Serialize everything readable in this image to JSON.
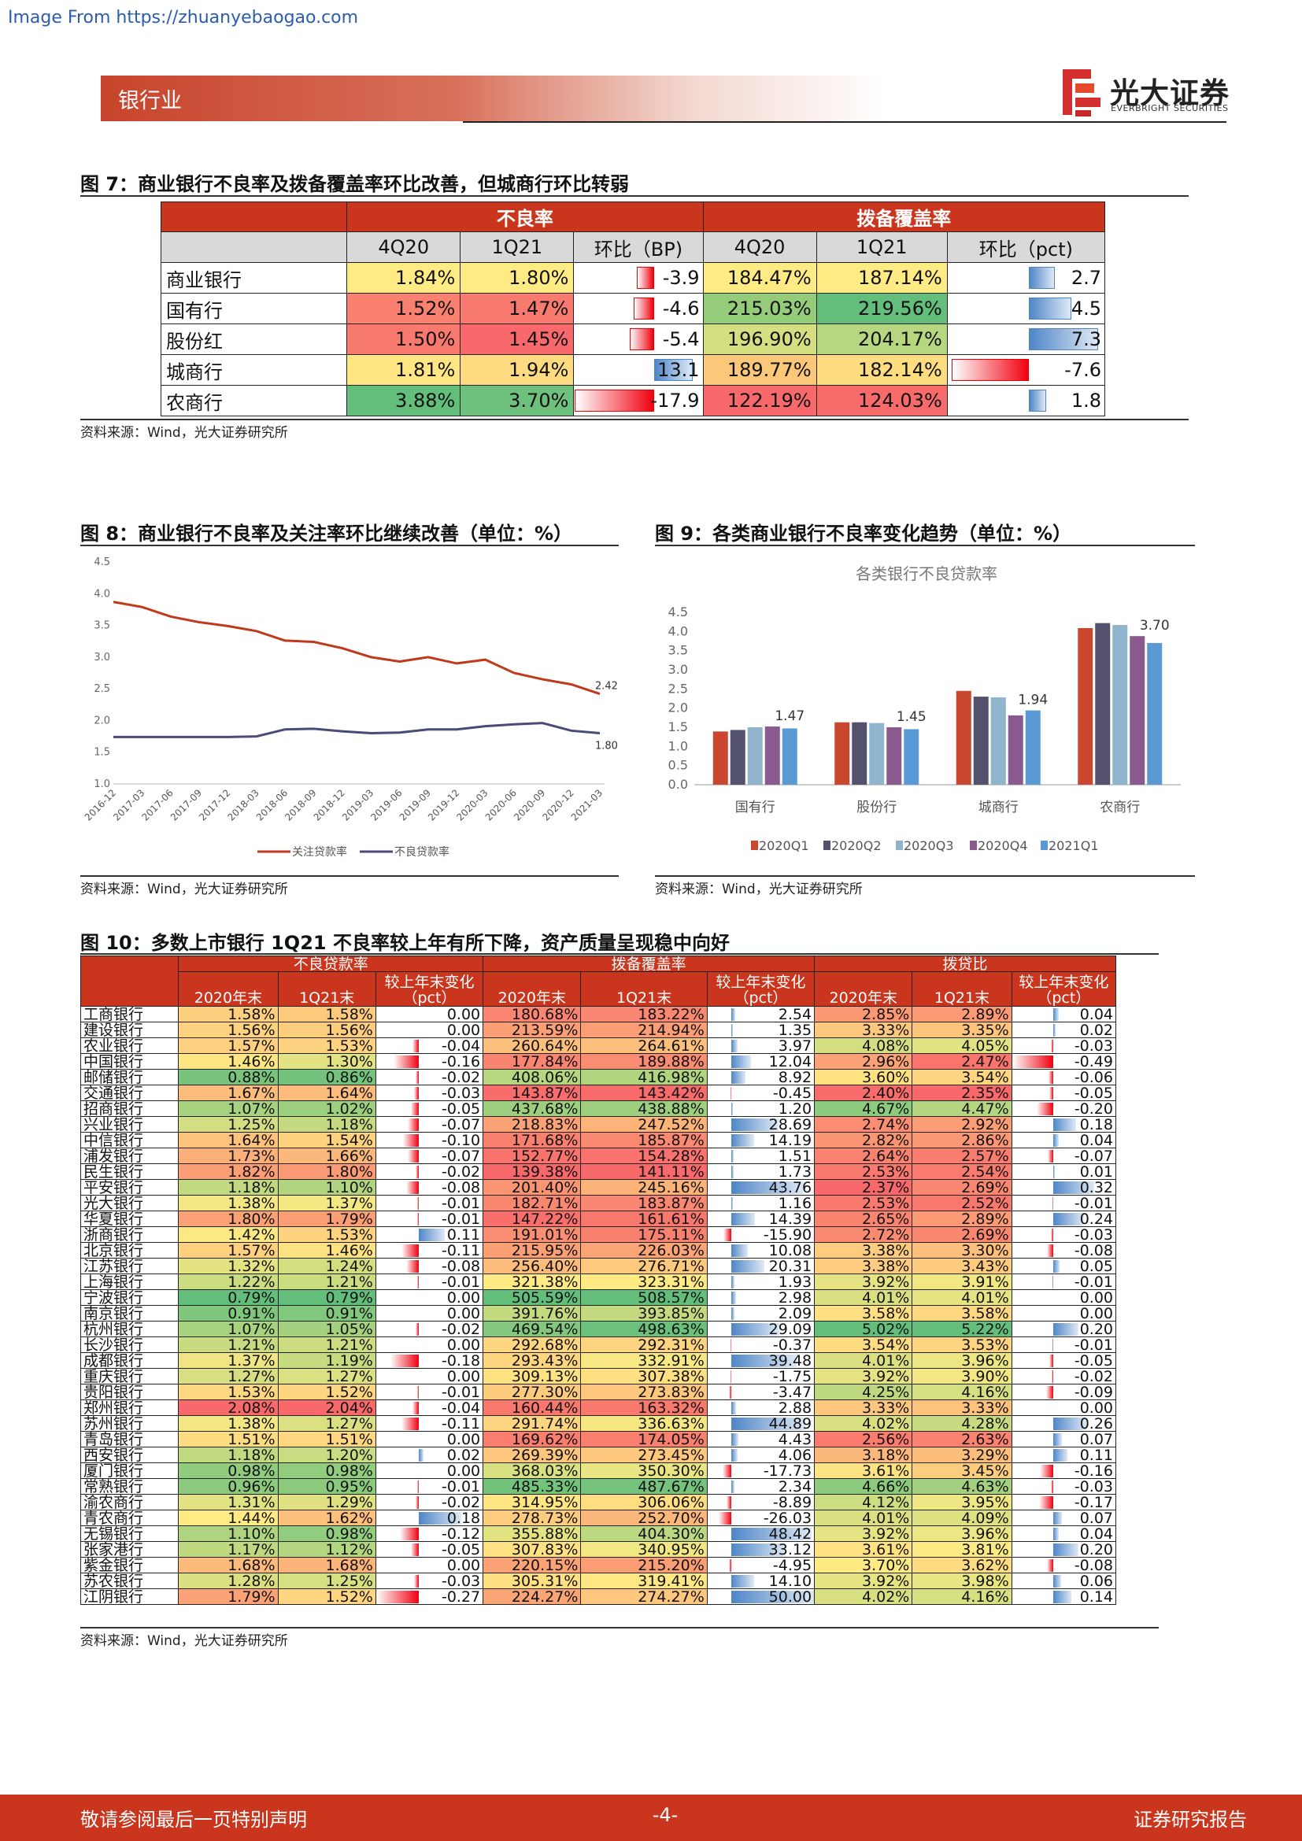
{
  "source_link": "Image From https://zhuanyebaogao.com",
  "header": {
    "section": "银行业",
    "brand_cn": "光大证券",
    "brand_en": "EVERBRIGHT SECURITIES"
  },
  "fig7": {
    "title": "图 7：商业银行不良率及拨备覆盖率环比改善，但城商行环比转弱",
    "group_npl": "不良率",
    "group_cov": "拨备覆盖率",
    "cols": [
      "4Q20",
      "1Q21",
      "环比（BP)",
      "4Q20",
      "1Q21",
      "环比（pct)"
    ],
    "rows": [
      {
        "name": "商业银行",
        "npl_4q": "1.84%",
        "npl_1q": "1.80%",
        "npl_chg": -3.9,
        "npl_chg_t": "-3.9",
        "cov_4q": "184.47%",
        "cov_1q": "187.14%",
        "cov_chg": 2.7,
        "cov_chg_t": "2.7",
        "c1": "#ffeb84",
        "c2": "#ffeb84",
        "c3": "#ffeb84",
        "c4": "#ffeb84"
      },
      {
        "name": "国有行",
        "npl_4q": "1.52%",
        "npl_1q": "1.47%",
        "npl_chg": -4.6,
        "npl_chg_t": "-4.6",
        "cov_4q": "215.03%",
        "cov_1q": "219.56%",
        "cov_chg": 4.5,
        "cov_chg_t": "4.5",
        "c1": "#fa8070",
        "c2": "#f87a6e",
        "c3": "#94cc7a",
        "c4": "#63be7b"
      },
      {
        "name": "股份红",
        "npl_4q": "1.50%",
        "npl_1q": "1.45%",
        "npl_chg": -5.4,
        "npl_chg_t": "-5.4",
        "cov_4q": "196.90%",
        "cov_1q": "204.17%",
        "cov_chg": 7.3,
        "cov_chg_t": "7.3",
        "c1": "#f8796d",
        "c2": "#f8696b",
        "c3": "#d4df82",
        "c4": "#b7d680"
      },
      {
        "name": "城商行",
        "npl_4q": "1.81%",
        "npl_1q": "1.94%",
        "npl_chg": 13.1,
        "npl_chg_t": "13.1",
        "cov_4q": "189.77%",
        "cov_1q": "182.14%",
        "cov_chg": -7.6,
        "cov_chg_t": "-7.6",
        "c1": "#ffe683",
        "c2": "#fedb81",
        "c3": "#fbc879",
        "c4": "#fedd81"
      },
      {
        "name": "农商行",
        "npl_4q": "3.88%",
        "npl_1q": "3.70%",
        "npl_chg": -17.9,
        "npl_chg_t": "-17.9",
        "cov_4q": "122.19%",
        "cov_1q": "124.03%",
        "cov_chg": 1.8,
        "cov_chg_t": "1.8",
        "c1": "#63be7b",
        "c2": "#6ec17c",
        "c3": "#f8696b",
        "c4": "#f86b6b"
      }
    ],
    "source": "资料来源：Wind，光大证券研究所"
  },
  "fig8": {
    "title": "图 8：商业银行不良率及关注率环比继续改善（单位：%）",
    "source": "资料来源：Wind，光大证券研究所",
    "chart_data": {
      "type": "line",
      "x": [
        "2016-12",
        "2017-03",
        "2017-06",
        "2017-09",
        "2017-12",
        "2018-03",
        "2018-06",
        "2018-09",
        "2018-12",
        "2019-03",
        "2019-06",
        "2019-09",
        "2019-12",
        "2020-03",
        "2020-06",
        "2020-09",
        "2020-12",
        "2021-03"
      ],
      "ylim": [
        1.0,
        4.5
      ],
      "yticks": [
        "1.0",
        "1.5",
        "2.0",
        "2.5",
        "3.0",
        "3.5",
        "4.0",
        "4.5"
      ],
      "series": [
        {
          "name": "关注贷款率",
          "color": "#c0391b",
          "values": [
            3.87,
            3.79,
            3.64,
            3.55,
            3.49,
            3.41,
            3.26,
            3.24,
            3.14,
            3.0,
            2.93,
            3.0,
            2.9,
            2.96,
            2.75,
            2.65,
            2.57,
            2.42
          ],
          "end_label": "2.42"
        },
        {
          "name": "不良贷款率",
          "color": "#4a4a7a",
          "values": [
            1.74,
            1.74,
            1.74,
            1.74,
            1.74,
            1.75,
            1.86,
            1.87,
            1.83,
            1.8,
            1.81,
            1.86,
            1.86,
            1.91,
            1.94,
            1.96,
            1.84,
            1.8
          ],
          "end_label": "1.80"
        }
      ]
    }
  },
  "fig9": {
    "title": "图 9：各类商业银行不良率变化趋势（单位：%）",
    "source": "资料来源：Wind，光大证券研究所",
    "chart_data": {
      "type": "bar",
      "title": "各类银行不良贷款率",
      "categories": [
        "国有行",
        "股份行",
        "城商行",
        "农商行"
      ],
      "ylim": [
        0,
        4.5
      ],
      "yticks": [
        "0.0",
        "0.5",
        "1.0",
        "1.5",
        "2.0",
        "2.5",
        "3.0",
        "3.5",
        "4.0",
        "4.5"
      ],
      "series": [
        {
          "name": "2020Q1",
          "color": "#c9472e",
          "values": [
            1.39,
            1.63,
            2.45,
            4.09
          ]
        },
        {
          "name": "2020Q2",
          "color": "#54516f",
          "values": [
            1.43,
            1.63,
            2.3,
            4.22
          ]
        },
        {
          "name": "2020Q3",
          "color": "#8fb4cc",
          "values": [
            1.5,
            1.61,
            2.28,
            4.17
          ]
        },
        {
          "name": "2020Q4",
          "color": "#8a5a8e",
          "values": [
            1.52,
            1.5,
            1.81,
            3.88
          ]
        },
        {
          "name": "2021Q1",
          "color": "#5a9ad4",
          "values": [
            1.47,
            1.45,
            1.94,
            3.7
          ]
        }
      ],
      "labels": [
        "1.47",
        "1.45",
        "1.94",
        "3.70"
      ]
    }
  },
  "fig10": {
    "title": "图 10：多数上市银行 1Q21 不良率较上年有所下降，资产质量呈现稳中向好",
    "groups": [
      "不良贷款率",
      "拨备覆盖率",
      "拨贷比"
    ],
    "subcols": [
      "2020年末",
      "1Q21末",
      "较上年末变化（pct）",
      "2020年末",
      "1Q21末",
      "较上年末变化（pct）",
      "2020年末",
      "1Q21末",
      "较上年末变化（pct）"
    ],
    "source": "资料来源：Wind，光大证券研究所",
    "rows": [
      [
        "工商银行",
        "1.58%",
        "1.58%",
        "0.00",
        "180.68%",
        "183.22%",
        "2.54",
        "2.85%",
        "2.89%",
        "0.04"
      ],
      [
        "建设银行",
        "1.56%",
        "1.56%",
        "0.00",
        "213.59%",
        "214.94%",
        "1.35",
        "3.33%",
        "3.35%",
        "0.02"
      ],
      [
        "农业银行",
        "1.57%",
        "1.53%",
        "-0.04",
        "260.64%",
        "264.61%",
        "3.97",
        "4.08%",
        "4.05%",
        "-0.03"
      ],
      [
        "中国银行",
        "1.46%",
        "1.30%",
        "-0.16",
        "177.84%",
        "189.88%",
        "12.04",
        "2.96%",
        "2.47%",
        "-0.49"
      ],
      [
        "邮储银行",
        "0.88%",
        "0.86%",
        "-0.02",
        "408.06%",
        "416.98%",
        "8.92",
        "3.60%",
        "3.54%",
        "-0.06"
      ],
      [
        "交通银行",
        "1.67%",
        "1.64%",
        "-0.03",
        "143.87%",
        "143.42%",
        "-0.45",
        "2.40%",
        "2.35%",
        "-0.05"
      ],
      [
        "招商银行",
        "1.07%",
        "1.02%",
        "-0.05",
        "437.68%",
        "438.88%",
        "1.20",
        "4.67%",
        "4.47%",
        "-0.20"
      ],
      [
        "兴业银行",
        "1.25%",
        "1.18%",
        "-0.07",
        "218.83%",
        "247.52%",
        "28.69",
        "2.74%",
        "2.92%",
        "0.18"
      ],
      [
        "中信银行",
        "1.64%",
        "1.54%",
        "-0.10",
        "171.68%",
        "185.87%",
        "14.19",
        "2.82%",
        "2.86%",
        "0.04"
      ],
      [
        "浦发银行",
        "1.73%",
        "1.66%",
        "-0.07",
        "152.77%",
        "154.28%",
        "1.51",
        "2.64%",
        "2.57%",
        "-0.07"
      ],
      [
        "民生银行",
        "1.82%",
        "1.80%",
        "-0.02",
        "139.38%",
        "141.11%",
        "1.73",
        "2.53%",
        "2.54%",
        "0.01"
      ],
      [
        "平安银行",
        "1.18%",
        "1.10%",
        "-0.08",
        "201.40%",
        "245.16%",
        "43.76",
        "2.37%",
        "2.69%",
        "0.32"
      ],
      [
        "光大银行",
        "1.38%",
        "1.37%",
        "-0.01",
        "182.71%",
        "183.87%",
        "1.16",
        "2.53%",
        "2.52%",
        "-0.01"
      ],
      [
        "华夏银行",
        "1.80%",
        "1.79%",
        "-0.01",
        "147.22%",
        "161.61%",
        "14.39",
        "2.65%",
        "2.89%",
        "0.24"
      ],
      [
        "浙商银行",
        "1.42%",
        "1.53%",
        "0.11",
        "191.01%",
        "175.11%",
        "-15.90",
        "2.72%",
        "2.69%",
        "-0.03"
      ],
      [
        "北京银行",
        "1.57%",
        "1.46%",
        "-0.11",
        "215.95%",
        "226.03%",
        "10.08",
        "3.38%",
        "3.30%",
        "-0.08"
      ],
      [
        "江苏银行",
        "1.32%",
        "1.24%",
        "-0.08",
        "256.40%",
        "276.71%",
        "20.31",
        "3.38%",
        "3.43%",
        "0.05"
      ],
      [
        "上海银行",
        "1.22%",
        "1.21%",
        "-0.01",
        "321.38%",
        "323.31%",
        "1.93",
        "3.92%",
        "3.91%",
        "-0.01"
      ],
      [
        "宁波银行",
        "0.79%",
        "0.79%",
        "0.00",
        "505.59%",
        "508.57%",
        "2.98",
        "4.01%",
        "4.01%",
        "0.00"
      ],
      [
        "南京银行",
        "0.91%",
        "0.91%",
        "0.00",
        "391.76%",
        "393.85%",
        "2.09",
        "3.58%",
        "3.58%",
        "0.00"
      ],
      [
        "杭州银行",
        "1.07%",
        "1.05%",
        "-0.02",
        "469.54%",
        "498.63%",
        "29.09",
        "5.02%",
        "5.22%",
        "0.20"
      ],
      [
        "长沙银行",
        "1.21%",
        "1.21%",
        "0.00",
        "292.68%",
        "292.31%",
        "-0.37",
        "3.54%",
        "3.53%",
        "-0.01"
      ],
      [
        "成都银行",
        "1.37%",
        "1.19%",
        "-0.18",
        "293.43%",
        "332.91%",
        "39.48",
        "4.01%",
        "3.96%",
        "-0.05"
      ],
      [
        "重庆银行",
        "1.27%",
        "1.27%",
        "0.00",
        "309.13%",
        "307.38%",
        "-1.75",
        "3.92%",
        "3.90%",
        "-0.02"
      ],
      [
        "贵阳银行",
        "1.53%",
        "1.52%",
        "-0.01",
        "277.30%",
        "273.83%",
        "-3.47",
        "4.25%",
        "4.16%",
        "-0.09"
      ],
      [
        "郑州银行",
        "2.08%",
        "2.04%",
        "-0.04",
        "160.44%",
        "163.32%",
        "2.88",
        "3.33%",
        "3.33%",
        "0.00"
      ],
      [
        "苏州银行",
        "1.38%",
        "1.27%",
        "-0.11",
        "291.74%",
        "336.63%",
        "44.89",
        "4.02%",
        "4.28%",
        "0.26"
      ],
      [
        "青岛银行",
        "1.51%",
        "1.51%",
        "0.00",
        "169.62%",
        "174.05%",
        "4.43",
        "2.56%",
        "2.63%",
        "0.07"
      ],
      [
        "西安银行",
        "1.18%",
        "1.20%",
        "0.02",
        "269.39%",
        "273.45%",
        "4.06",
        "3.18%",
        "3.29%",
        "0.11"
      ],
      [
        "厦门银行",
        "0.98%",
        "0.98%",
        "0.00",
        "368.03%",
        "350.30%",
        "-17.73",
        "3.61%",
        "3.45%",
        "-0.16"
      ],
      [
        "常熟银行",
        "0.96%",
        "0.95%",
        "-0.01",
        "485.33%",
        "487.67%",
        "2.34",
        "4.66%",
        "4.63%",
        "-0.03"
      ],
      [
        "渝农商行",
        "1.31%",
        "1.29%",
        "-0.02",
        "314.95%",
        "306.06%",
        "-8.89",
        "4.12%",
        "3.95%",
        "-0.17"
      ],
      [
        "青农商行",
        "1.44%",
        "1.62%",
        "0.18",
        "278.73%",
        "252.70%",
        "-26.03",
        "4.01%",
        "4.09%",
        "0.07"
      ],
      [
        "无锡银行",
        "1.10%",
        "0.98%",
        "-0.12",
        "355.88%",
        "404.30%",
        "48.42",
        "3.92%",
        "3.96%",
        "0.04"
      ],
      [
        "张家港行",
        "1.17%",
        "1.12%",
        "-0.05",
        "307.83%",
        "340.95%",
        "33.12",
        "3.61%",
        "3.81%",
        "0.20"
      ],
      [
        "紫金银行",
        "1.68%",
        "1.68%",
        "0.00",
        "220.15%",
        "215.20%",
        "-4.95",
        "3.70%",
        "3.62%",
        "-0.08"
      ],
      [
        "苏农银行",
        "1.28%",
        "1.25%",
        "-0.03",
        "305.31%",
        "319.41%",
        "14.10",
        "3.92%",
        "3.98%",
        "0.06"
      ],
      [
        "江阴银行",
        "1.79%",
        "1.52%",
        "-0.27",
        "224.27%",
        "274.27%",
        "50.00",
        "4.02%",
        "4.16%",
        "0.14"
      ]
    ]
  },
  "footer": {
    "left": "敬请参阅最后一页特别声明",
    "page": "-4-",
    "right": "证券研究报告"
  }
}
